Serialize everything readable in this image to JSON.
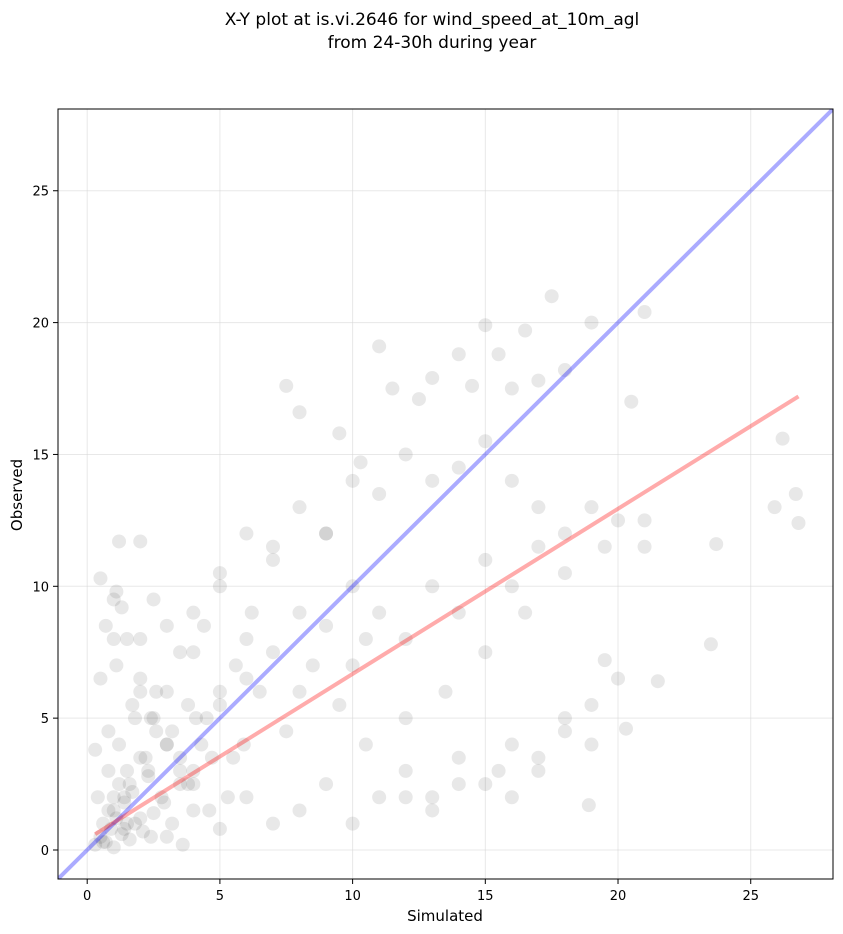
{
  "chart_data": {
    "type": "scatter",
    "title_line1": "X-Y plot at is.vi.2646 for wind_speed_at_10m_agl",
    "title_line2": "from 24-30h during year",
    "xlabel": "Simulated",
    "ylabel": "Observed",
    "xlim": [
      -1.1,
      28.1
    ],
    "ylim": [
      -1.1,
      28.1
    ],
    "xticks": [
      0,
      5,
      10,
      15,
      20,
      25
    ],
    "yticks": [
      0,
      5,
      10,
      15,
      20,
      25
    ],
    "xtick_labels": [
      "0",
      "5",
      "10",
      "15",
      "20",
      "25"
    ],
    "ytick_labels": [
      "0",
      "5",
      "10",
      "15",
      "20",
      "25"
    ],
    "grid": true,
    "point_color": "#000000",
    "identity_line": {
      "color": "#0000ff",
      "x": [
        -1.1,
        28.1
      ],
      "y": [
        -1.1,
        28.1
      ]
    },
    "fit_line": {
      "color": "#ff0000",
      "x": [
        0.3,
        26.8
      ],
      "y": [
        0.6,
        17.2
      ]
    },
    "points": {
      "x": [
        0.3,
        0.5,
        0.6,
        0.7,
        0.8,
        0.9,
        1.0,
        1.0,
        1.1,
        1.2,
        1.3,
        1.4,
        1.5,
        1.6,
        1.7,
        1.8,
        2.0,
        2.1,
        2.3,
        2.5,
        0.4,
        0.6,
        0.8,
        1.0,
        1.2,
        1.4,
        1.6,
        1.8,
        2.0,
        2.2,
        2.4,
        2.6,
        2.8,
        3.0,
        3.2,
        3.5,
        3.8,
        4.0,
        4.3,
        4.6,
        0.5,
        0.8,
        1.1,
        1.4,
        1.7,
        2.0,
        2.3,
        2.6,
        2.9,
        3.2,
        3.5,
        3.8,
        4.1,
        4.4,
        4.7,
        5.0,
        5.3,
        5.6,
        5.9,
        6.2,
        1.0,
        1.5,
        2.0,
        2.5,
        3.0,
        3.5,
        4.0,
        4.5,
        5.0,
        5.5,
        6.0,
        6.5,
        7.0,
        7.5,
        8.0,
        8.5,
        9.0,
        9.5,
        10.0,
        10.5,
        2.0,
        3.0,
        4.0,
        5.0,
        6.0,
        7.0,
        8.0,
        9.0,
        10.0,
        11.0,
        12.0,
        13.0,
        14.0,
        15.0,
        16.0,
        17.0,
        18.0,
        19.0,
        20.0,
        21.0,
        3.0,
        4.0,
        5.0,
        6.0,
        7.0,
        8.0,
        9.0,
        10.0,
        11.0,
        12.0,
        13.0,
        14.0,
        15.0,
        16.0,
        17.0,
        18.0,
        19.0,
        20.0,
        5.0,
        6.0,
        7.0,
        8.0,
        9.0,
        10.0,
        11.0,
        12.0,
        13.0,
        14.0,
        15.0,
        16.0,
        17.0,
        7.5,
        8.0,
        9.5,
        10.3,
        11.0,
        11.5,
        12.5,
        13.0,
        14.0,
        14.5,
        15.0,
        15.5,
        16.0,
        16.5,
        17.0,
        17.5,
        18.0,
        19.0,
        20.5,
        21.0,
        10.5,
        12.0,
        13.5,
        15.0,
        16.5,
        18.0,
        19.5,
        21.0,
        0.5,
        1.0,
        1.5,
        2.0,
        2.5,
        3.0,
        3.5,
        4.0,
        18.9,
        19.5,
        20.3,
        21.5,
        23.5,
        23.7,
        25.9,
        26.2,
        26.7,
        26.8,
        12.0,
        13.0,
        14.0,
        15.5,
        16.0,
        17.0,
        18.0,
        19.0,
        0.3,
        0.7,
        1.2,
        2.4,
        3.6,
        1.1,
        1.3
      ],
      "y": [
        0.2,
        0.5,
        1.0,
        0.3,
        1.5,
        0.8,
        2.0,
        0.1,
        1.2,
        2.5,
        0.6,
        1.8,
        3.0,
        0.4,
        2.2,
        1.0,
        3.5,
        0.7,
        2.8,
        1.4,
        2.0,
        0.3,
        3.0,
        1.5,
        4.0,
        0.8,
        2.5,
        5.0,
        1.2,
        3.5,
        0.5,
        4.5,
        2.0,
        6.0,
        1.0,
        3.0,
        5.5,
        2.5,
        4.0,
        1.5,
        6.5,
        4.5,
        7.0,
        2.0,
        5.5,
        8.0,
        3.0,
        6.0,
        1.8,
        4.5,
        7.5,
        2.5,
        5.0,
        8.5,
        3.5,
        6.0,
        2.0,
        7.0,
        4.0,
        9.0,
        8.0,
        1.0,
        6.0,
        9.5,
        4.0,
        2.5,
        7.5,
        5.0,
        10.0,
        3.5,
        8.0,
        6.0,
        11.0,
        4.5,
        9.0,
        7.0,
        12.0,
        5.5,
        10.0,
        8.0,
        11.7,
        8.5,
        9.0,
        10.5,
        12.0,
        11.5,
        13.0,
        12.0,
        14.0,
        13.5,
        15.0,
        14.0,
        14.5,
        15.5,
        14.0,
        13.0,
        12.0,
        13.0,
        12.5,
        11.5,
        0.5,
        1.5,
        0.8,
        2.0,
        1.0,
        1.5,
        2.5,
        1.0,
        2.0,
        3.0,
        2.0,
        3.5,
        2.5,
        4.0,
        3.0,
        5.0,
        4.0,
        6.5,
        5.5,
        6.5,
        7.5,
        6.0,
        8.5,
        7.0,
        9.0,
        8.0,
        10.0,
        9.0,
        11.0,
        10.0,
        11.5,
        17.6,
        16.6,
        15.8,
        14.7,
        19.1,
        17.5,
        17.1,
        17.9,
        18.8,
        17.6,
        19.9,
        18.8,
        17.5,
        19.7,
        17.8,
        21.0,
        18.2,
        20.0,
        17.0,
        20.4,
        4.0,
        5.0,
        6.0,
        7.5,
        9.0,
        10.5,
        11.5,
        12.5,
        10.3,
        9.5,
        8.0,
        6.5,
        5.0,
        4.0,
        3.5,
        3.0,
        1.7,
        7.2,
        4.6,
        6.4,
        7.8,
        11.6,
        13.0,
        15.6,
        13.5,
        12.4,
        2.0,
        1.5,
        2.5,
        3.0,
        2.0,
        3.5,
        4.5,
        5.5,
        3.8,
        8.5,
        11.7,
        5.0,
        0.2,
        9.8,
        9.2
      ]
    }
  }
}
